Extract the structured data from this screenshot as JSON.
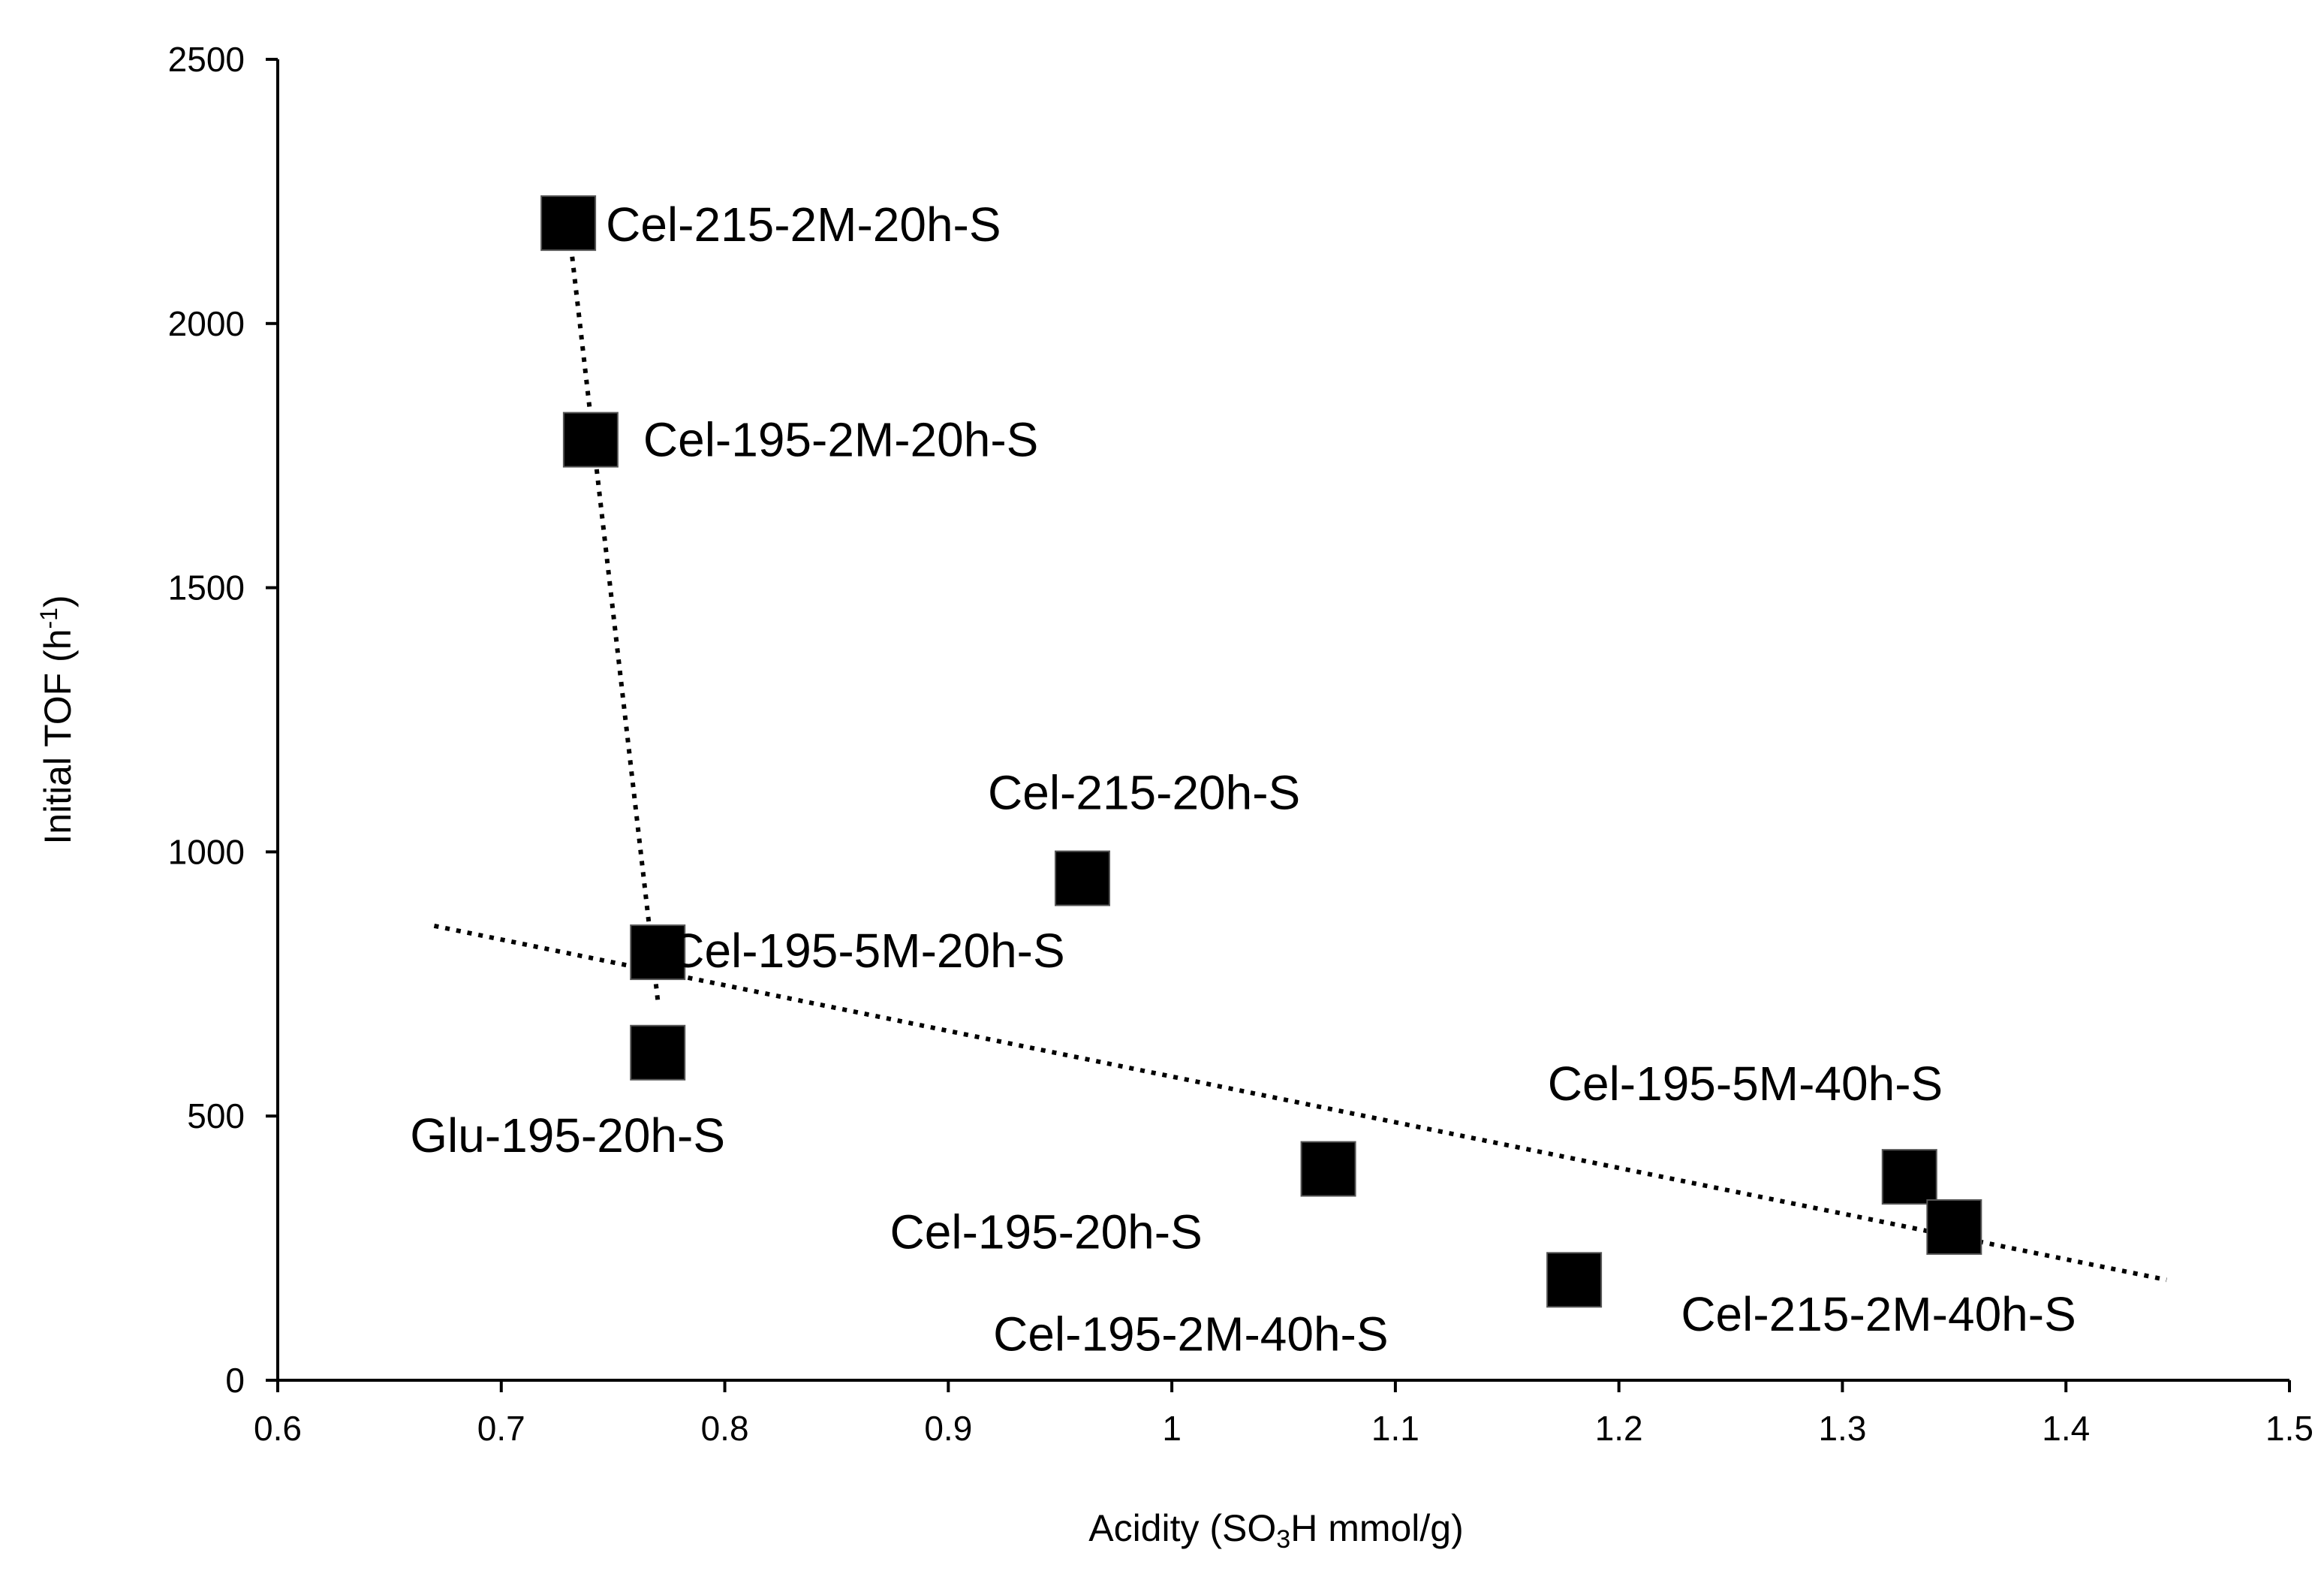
{
  "chart_data": {
    "type": "scatter",
    "title": "",
    "xlabel_parts": [
      "Acidity (SO",
      "3",
      "H mmol/g)"
    ],
    "ylabel_parts": [
      "Initial TOF (h",
      "-1",
      ")"
    ],
    "xlim": [
      0.6,
      1.5
    ],
    "ylim": [
      0,
      2500
    ],
    "x_ticks": [
      0.6,
      0.7,
      0.8,
      0.9,
      1,
      1.1,
      1.2,
      1.3,
      1.4,
      1.5
    ],
    "x_tick_labels": [
      "0.6",
      "0.7",
      "0.8",
      "0.9",
      "1",
      "1.1",
      "1.2",
      "1.3",
      "1.4",
      "1.5"
    ],
    "y_ticks": [
      0,
      500,
      1000,
      1500,
      2000,
      2500
    ],
    "y_tick_labels": [
      "0",
      "500",
      "1000",
      "1500",
      "2000",
      "2500"
    ],
    "grid": false,
    "points": [
      {
        "label": "Cel-215-2M-20h-S",
        "x": 0.73,
        "y": 2190
      },
      {
        "label": "Cel-195-2M-20h-S",
        "x": 0.74,
        "y": 1780
      },
      {
        "label": "Cel-195-5M-20h-S",
        "x": 0.77,
        "y": 810
      },
      {
        "label": "Glu-195-20h-S",
        "x": 0.77,
        "y": 620
      },
      {
        "label": "Cel-215-20h-S",
        "x": 0.96,
        "y": 950
      },
      {
        "label": "Cel-195-20h-S",
        "x": 1.07,
        "y": 400
      },
      {
        "label": "Cel-195-2M-40h-S",
        "x": 1.18,
        "y": 190
      },
      {
        "label": "Cel-195-5M-40h-S",
        "x": 1.33,
        "y": 385
      },
      {
        "label": "Cel-215-2M-40h-S",
        "x": 1.35,
        "y": 290
      }
    ],
    "trendlines": [
      {
        "name": "steep-trendline",
        "x": [
          0.73,
          0.77
        ],
        "y": [
          2190,
          720
        ]
      },
      {
        "name": "shallow-trendline",
        "x": [
          0.67,
          1.445
        ],
        "y": [
          860,
          190
        ]
      }
    ]
  }
}
